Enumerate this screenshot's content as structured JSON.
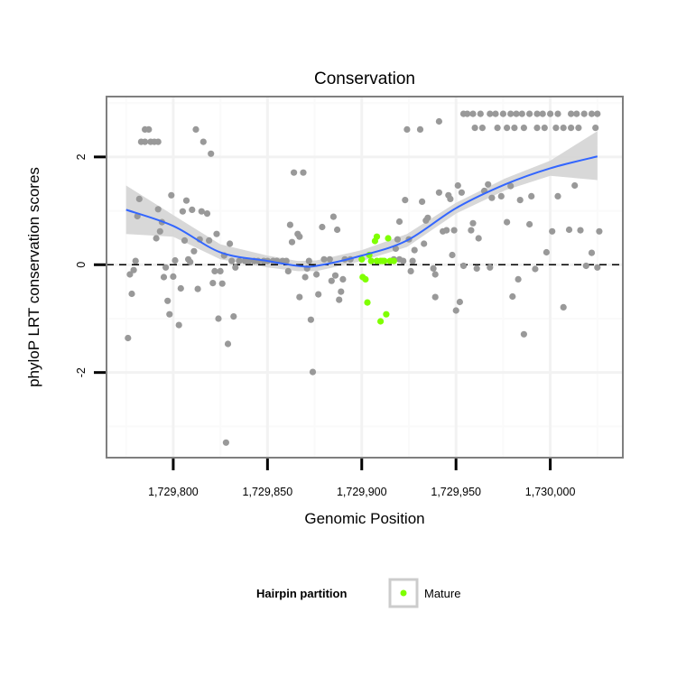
{
  "chart_data": {
    "type": "scatter",
    "title": "Conservation",
    "xlabel": "Genomic Position",
    "ylabel": "phyloP LRT conservation scores",
    "xlim": [
      1729764.6,
      1730038.5
    ],
    "ylim": [
      -3.58,
      3.12
    ],
    "x_ticks": [
      1729800,
      1729850,
      1729900,
      1729950,
      1730000
    ],
    "x_tick_labels": [
      "1,729,800",
      "1,729,850",
      "1,729,900",
      "1,729,950",
      "1,730,000"
    ],
    "x_minor_ticks": [
      1729775,
      1729825,
      1729875,
      1729925,
      1729975,
      1730025
    ],
    "y_ticks": [
      -2,
      0,
      2
    ],
    "y_tick_labels": [
      "-2",
      "0",
      "2"
    ],
    "y_minor_ticks": [
      -3,
      -1,
      1,
      3
    ],
    "grid": true,
    "reference_line": {
      "y": 0,
      "style": "dashed"
    },
    "colors": {
      "other": "#999999",
      "mature": "#7fff00",
      "smooth": "#3366ff",
      "band": "#d4d4d4"
    },
    "legend": {
      "title": "Hairpin partition",
      "entries": [
        {
          "label": "Mature",
          "color": "#7fff00"
        }
      ],
      "placement": "bottom"
    },
    "series": [
      {
        "name": "Other",
        "color": "#999999",
        "points": [
          [
            1729776,
            -1.36
          ],
          [
            1729778,
            -0.54
          ],
          [
            1729777,
            -0.18
          ],
          [
            1729779,
            -0.1
          ],
          [
            1729780,
            0.07
          ],
          [
            1729781,
            0.9
          ],
          [
            1729782,
            1.22
          ],
          [
            1729785,
            2.51
          ],
          [
            1729787,
            2.51
          ],
          [
            1729783,
            2.28
          ],
          [
            1729785,
            2.28
          ],
          [
            1729788,
            2.28
          ],
          [
            1729790,
            2.28
          ],
          [
            1729792,
            2.28
          ],
          [
            1729791,
            0.49
          ],
          [
            1729792,
            1.03
          ],
          [
            1729793,
            0.62
          ],
          [
            1729794,
            0.79
          ],
          [
            1729796,
            -0.05
          ],
          [
            1729795,
            -0.23
          ],
          [
            1729797,
            -0.67
          ],
          [
            1729798,
            -0.92
          ],
          [
            1729799,
            1.29
          ],
          [
            1729800,
            -0.22
          ],
          [
            1729801,
            0.08
          ],
          [
            1729803,
            -1.12
          ],
          [
            1729804,
            -0.44
          ],
          [
            1729805,
            0.99
          ],
          [
            1729806,
            0.45
          ],
          [
            1729807,
            1.19
          ],
          [
            1729808,
            0.1
          ],
          [
            1729809,
            0.05
          ],
          [
            1729810,
            1.02
          ],
          [
            1729811,
            0.25
          ],
          [
            1729812,
            2.51
          ],
          [
            1729813,
            -0.45
          ],
          [
            1729814,
            0.47
          ],
          [
            1729815,
            0.99
          ],
          [
            1729816,
            2.28
          ],
          [
            1729818,
            0.95
          ],
          [
            1729819,
            0.45
          ],
          [
            1729820,
            2.06
          ],
          [
            1729821,
            -0.34
          ],
          [
            1729822,
            -0.12
          ],
          [
            1729823,
            0.57
          ],
          [
            1729824,
            -1.0
          ],
          [
            1729825,
            -0.12
          ],
          [
            1729826,
            -0.35
          ],
          [
            1729827,
            0.17
          ],
          [
            1729828,
            -3.3
          ],
          [
            1729829,
            -1.47
          ],
          [
            1729830,
            0.39
          ],
          [
            1729831,
            0.07
          ],
          [
            1729832,
            -0.96
          ],
          [
            1729833,
            -0.05
          ],
          [
            1729835,
            0.07
          ],
          [
            1729838,
            0.07
          ],
          [
            1729840,
            0.07
          ],
          [
            1729843,
            0.07
          ],
          [
            1729845,
            0.07
          ],
          [
            1729848,
            0.07
          ],
          [
            1729850,
            0.07
          ],
          [
            1729853,
            0.07
          ],
          [
            1729855,
            0.07
          ],
          [
            1729858,
            0.07
          ],
          [
            1729860,
            0.07
          ],
          [
            1729861,
            -0.12
          ],
          [
            1729862,
            0.74
          ],
          [
            1729863,
            0.42
          ],
          [
            1729864,
            1.71
          ],
          [
            1729869,
            1.71
          ],
          [
            1729866,
            0.57
          ],
          [
            1729867,
            0.52
          ],
          [
            1729867,
            -0.6
          ],
          [
            1729870,
            -0.23
          ],
          [
            1729871,
            -0.07
          ],
          [
            1729872,
            0.07
          ],
          [
            1729873,
            -1.02
          ],
          [
            1729874,
            -1.99
          ],
          [
            1729876,
            -0.18
          ],
          [
            1729877,
            -0.55
          ],
          [
            1729879,
            0.7
          ],
          [
            1729880,
            0.1
          ],
          [
            1729883,
            0.1
          ],
          [
            1729884,
            -0.3
          ],
          [
            1729885,
            0.89
          ],
          [
            1729886,
            -0.2
          ],
          [
            1729887,
            0.65
          ],
          [
            1729888,
            -0.65
          ],
          [
            1729889,
            -0.5
          ],
          [
            1729890,
            -0.27
          ],
          [
            1729891,
            0.1
          ],
          [
            1729894,
            0.1
          ],
          [
            1729954,
            2.8
          ],
          [
            1729956,
            2.8
          ],
          [
            1729959,
            2.8
          ],
          [
            1729963,
            2.8
          ],
          [
            1729968,
            2.8
          ],
          [
            1729971,
            2.8
          ],
          [
            1729975,
            2.8
          ],
          [
            1729979,
            2.8
          ],
          [
            1729982,
            2.8
          ],
          [
            1729985,
            2.8
          ],
          [
            1729989,
            2.8
          ],
          [
            1729993,
            2.8
          ],
          [
            1729996,
            2.8
          ],
          [
            1730000,
            2.8
          ],
          [
            1730004,
            2.8
          ],
          [
            1730011,
            2.8
          ],
          [
            1730014,
            2.8
          ],
          [
            1730018,
            2.8
          ],
          [
            1730022,
            2.8
          ],
          [
            1730025,
            2.8
          ],
          [
            1729960,
            2.54
          ],
          [
            1729964,
            2.54
          ],
          [
            1729972,
            2.54
          ],
          [
            1729977,
            2.54
          ],
          [
            1729981,
            2.54
          ],
          [
            1729986,
            2.54
          ],
          [
            1729993,
            2.54
          ],
          [
            1729997,
            2.54
          ],
          [
            1730003,
            2.54
          ],
          [
            1730007,
            2.54
          ],
          [
            1730011,
            2.54
          ],
          [
            1730015,
            2.54
          ],
          [
            1730024,
            2.54
          ],
          [
            1729924,
            2.51
          ],
          [
            1729931,
            2.51
          ],
          [
            1729941,
            2.66
          ],
          [
            1729923,
            1.2
          ],
          [
            1729932,
            1.17
          ],
          [
            1729941,
            1.34
          ],
          [
            1729946,
            1.29
          ],
          [
            1729947,
            1.22
          ],
          [
            1729951,
            1.47
          ],
          [
            1729953,
            1.34
          ],
          [
            1729965,
            1.37
          ],
          [
            1729967,
            1.49
          ],
          [
            1729969,
            1.24
          ],
          [
            1729974,
            1.27
          ],
          [
            1729979,
            1.46
          ],
          [
            1729984,
            1.2
          ],
          [
            1729990,
            1.27
          ],
          [
            1730004,
            1.27
          ],
          [
            1730013,
            1.47
          ],
          [
            1729920,
            0.8
          ],
          [
            1729919,
            0.47
          ],
          [
            1729918,
            0.3
          ],
          [
            1729925,
            0.47
          ],
          [
            1729928,
            0.27
          ],
          [
            1729927,
            0.07
          ],
          [
            1729926,
            -0.12
          ],
          [
            1729922,
            0.07
          ],
          [
            1729933,
            0.39
          ],
          [
            1729934,
            0.82
          ],
          [
            1729935,
            0.87
          ],
          [
            1729938,
            -0.07
          ],
          [
            1729939,
            -0.18
          ],
          [
            1729939,
            -0.6
          ],
          [
            1729943,
            0.62
          ],
          [
            1729945,
            0.64
          ],
          [
            1729949,
            0.64
          ],
          [
            1729948,
            0.18
          ],
          [
            1729950,
            -0.85
          ],
          [
            1729952,
            -0.69
          ],
          [
            1729954,
            -0.02
          ],
          [
            1729959,
            0.77
          ],
          [
            1729958,
            0.64
          ],
          [
            1729961,
            -0.07
          ],
          [
            1729962,
            0.49
          ],
          [
            1729968,
            -0.05
          ],
          [
            1729977,
            0.79
          ],
          [
            1729980,
            -0.59
          ],
          [
            1729983,
            -0.27
          ],
          [
            1729986,
            -1.29
          ],
          [
            1729989,
            0.75
          ],
          [
            1729992,
            -0.08
          ],
          [
            1729998,
            0.23
          ],
          [
            1730001,
            0.62
          ],
          [
            1730007,
            -0.79
          ],
          [
            1730010,
            0.65
          ],
          [
            1730016,
            0.64
          ],
          [
            1730019,
            -0.02
          ],
          [
            1730022,
            0.22
          ],
          [
            1730025,
            -0.05
          ],
          [
            1730026,
            0.62
          ],
          [
            1729917,
            0.1
          ],
          [
            1729920,
            0.1
          ]
        ]
      },
      {
        "name": "Mature",
        "color": "#7fff00",
        "points": [
          [
            1729900,
            0.1
          ],
          [
            1729900.5,
            -0.23
          ],
          [
            1729902,
            -0.27
          ],
          [
            1729903,
            -0.7
          ],
          [
            1729907,
            0.44
          ],
          [
            1729908,
            0.52
          ],
          [
            1729914,
            0.49
          ],
          [
            1729904,
            0.18
          ],
          [
            1729905,
            0.07
          ],
          [
            1729908,
            0.07
          ],
          [
            1729910,
            0.07
          ],
          [
            1729911,
            0.07
          ],
          [
            1729912,
            0.07
          ],
          [
            1729915,
            0.07
          ],
          [
            1729917,
            0.07
          ],
          [
            1729913,
            -0.92
          ],
          [
            1729910,
            -1.05
          ]
        ]
      }
    ],
    "smooth": {
      "x": [
        1729775,
        1729800,
        1729825,
        1729850,
        1729866,
        1729876,
        1729900,
        1729924,
        1729950,
        1729976,
        1730000,
        1730025
      ],
      "y": [
        1.02,
        0.72,
        0.23,
        0.07,
        -0.02,
        -0.02,
        0.17,
        0.45,
        1.05,
        1.49,
        1.79,
        2.01
      ],
      "lower": [
        0.57,
        0.52,
        0.1,
        -0.05,
        -0.12,
        -0.12,
        0.07,
        0.33,
        0.95,
        1.38,
        1.65,
        1.57
      ],
      "upper": [
        1.47,
        0.92,
        0.38,
        0.17,
        0.07,
        0.08,
        0.27,
        0.57,
        1.15,
        1.6,
        1.93,
        2.48
      ]
    }
  }
}
